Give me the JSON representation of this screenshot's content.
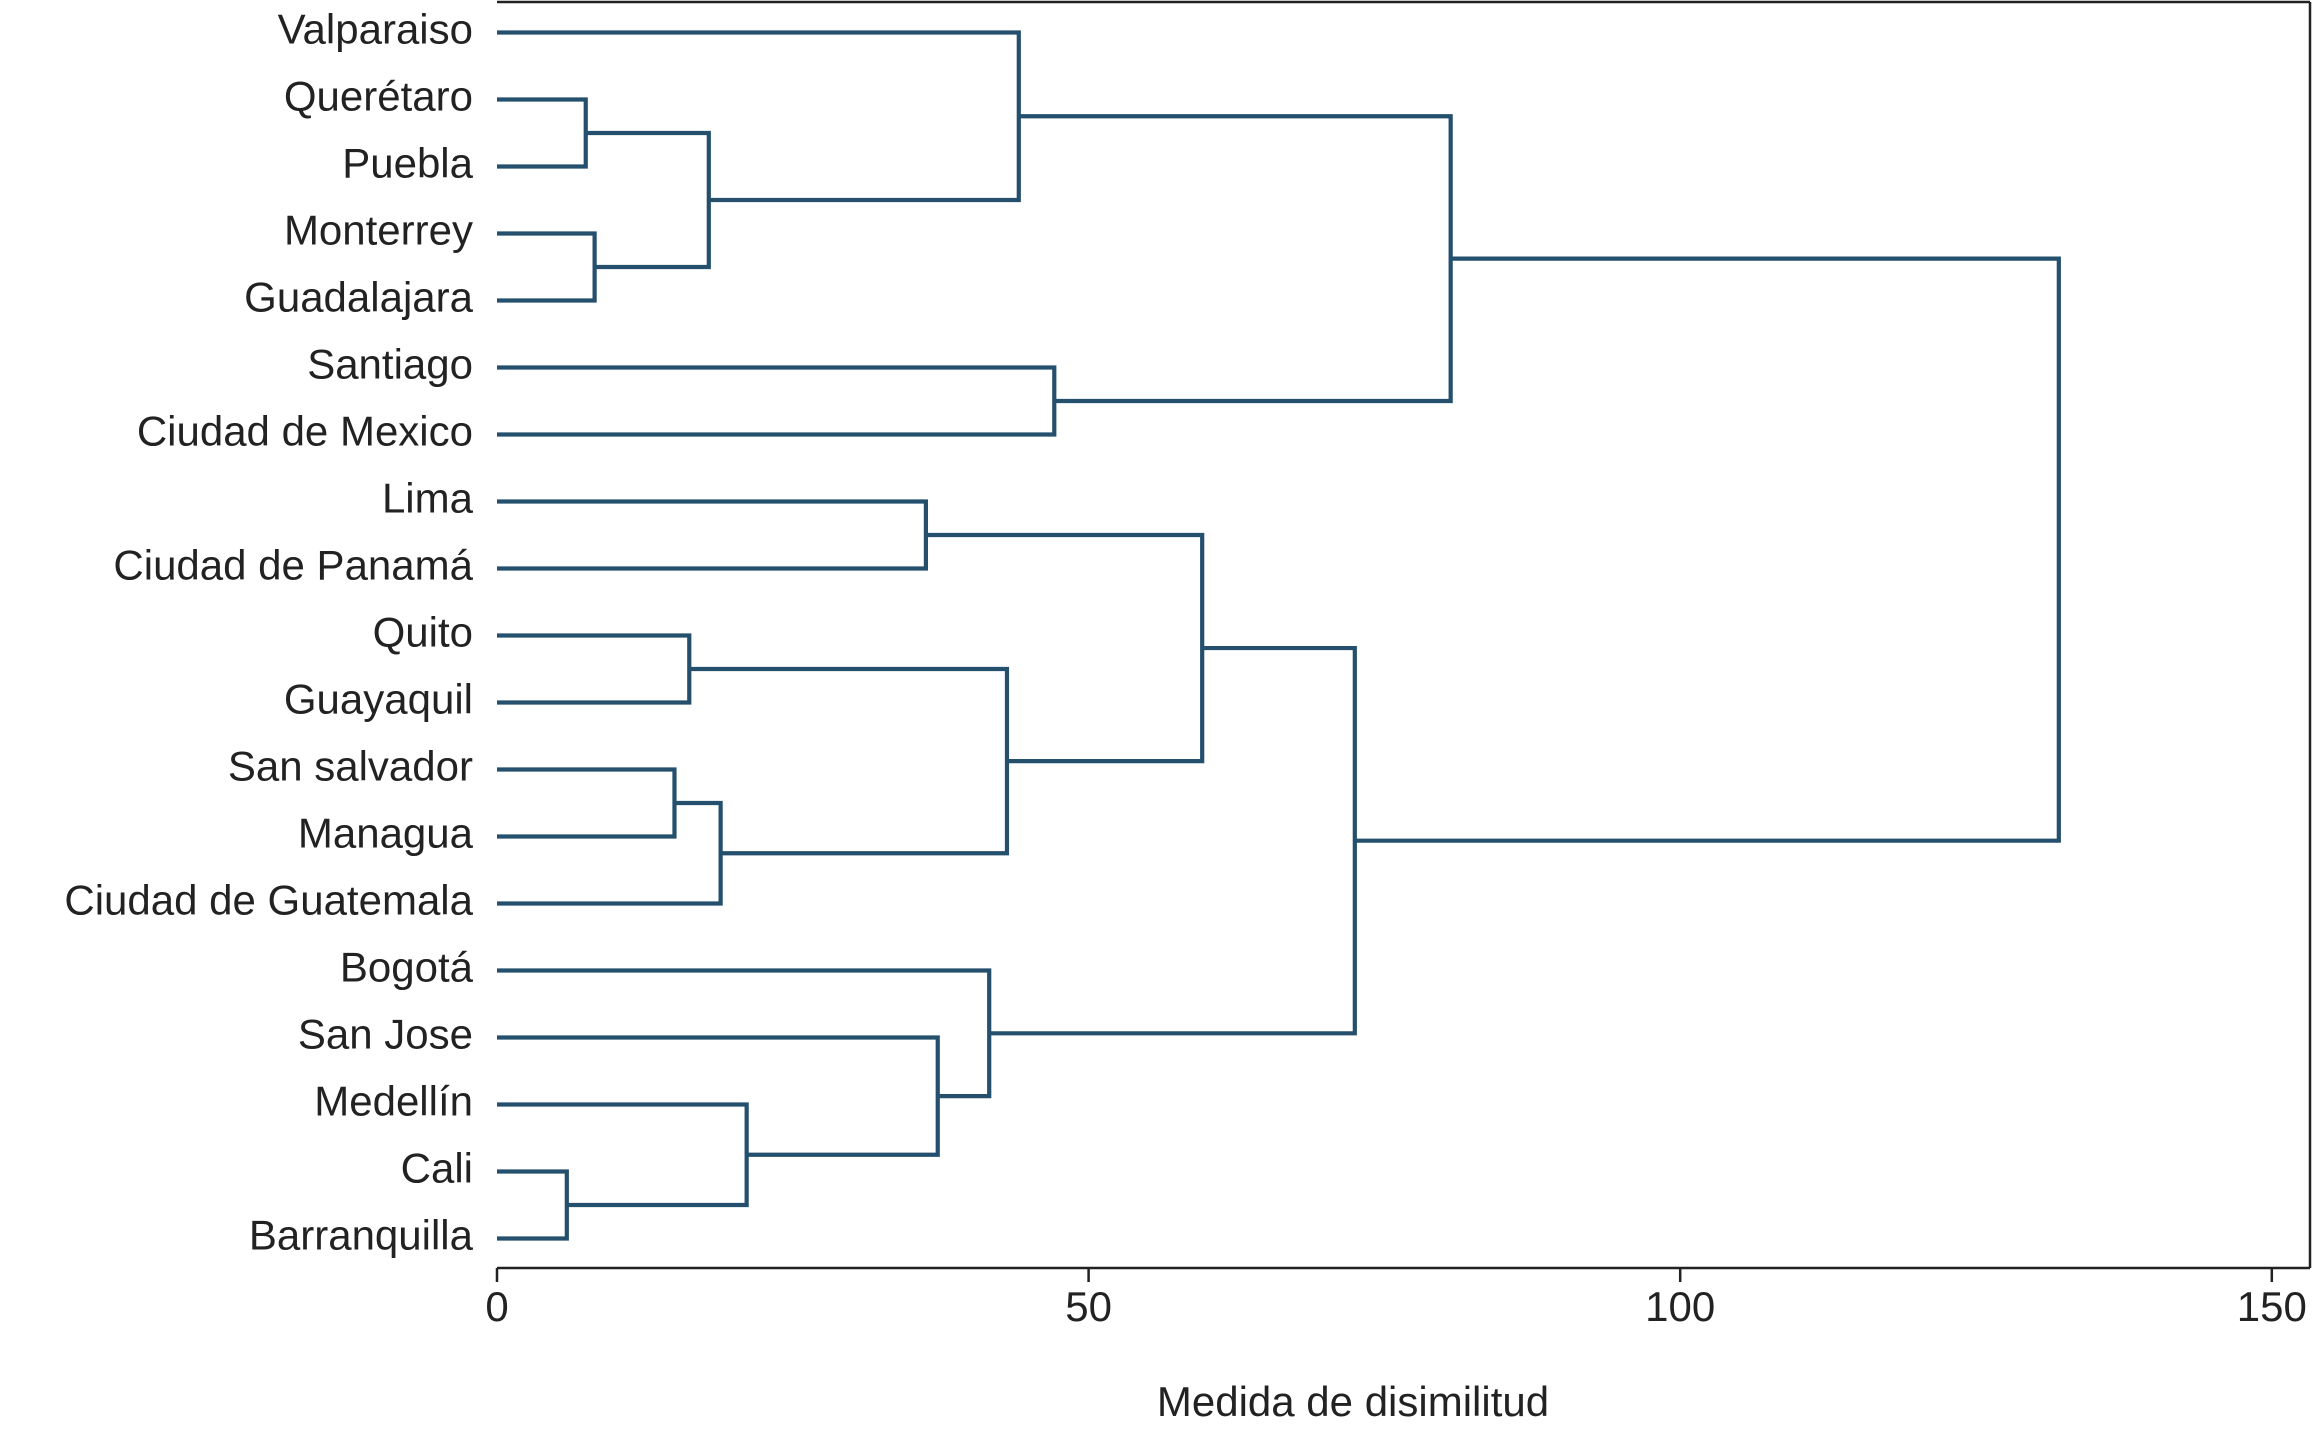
{
  "chart_data": {
    "type": "dendrogram",
    "xlabel": "Medida de disimilitud",
    "leaves": [
      "Valparaiso",
      "Querétaro",
      "Puebla",
      "Monterrey",
      "Guadalajara",
      "Santiago",
      "Ciudad de Mexico",
      "Lima",
      "Ciudad de Panamá",
      "Quito",
      "Guayaquil",
      "San salvador",
      "Managua",
      "Ciudad de Guatemala",
      "Bogotá",
      "San Jose",
      "Medellín",
      "Cali",
      "Barranquilla"
    ],
    "merges": [
      {
        "children": [
          1,
          2
        ],
        "height": 7.5
      },
      {
        "children": [
          3,
          4
        ],
        "height": 8.25
      },
      {
        "children": [
          19,
          20
        ],
        "height": 17.9
      },
      {
        "children": [
          0,
          21
        ],
        "height": 44.1
      },
      {
        "children": [
          5,
          6
        ],
        "height": 47.1
      },
      {
        "children": [
          22,
          23
        ],
        "height": 80.6
      },
      {
        "children": [
          7,
          8
        ],
        "height": 36.25
      },
      {
        "children": [
          9,
          10
        ],
        "height": 16.25
      },
      {
        "children": [
          11,
          12
        ],
        "height": 15
      },
      {
        "children": [
          27,
          13
        ],
        "height": 18.9
      },
      {
        "children": [
          26,
          28
        ],
        "height": 43.1
      },
      {
        "children": [
          25,
          29
        ],
        "height": 59.6
      },
      {
        "children": [
          17,
          18
        ],
        "height": 5.9
      },
      {
        "children": [
          16,
          31
        ],
        "height": 21.1
      },
      {
        "children": [
          15,
          32
        ],
        "height": 37.25
      },
      {
        "children": [
          14,
          33
        ],
        "height": 41.6
      },
      {
        "children": [
          30,
          34
        ],
        "height": 72.5
      },
      {
        "children": [
          24,
          35
        ],
        "height": 132
      }
    ],
    "color": "#24506e",
    "xlim": [
      0,
      153
    ],
    "xticks": [
      0,
      50,
      100,
      150
    ]
  }
}
